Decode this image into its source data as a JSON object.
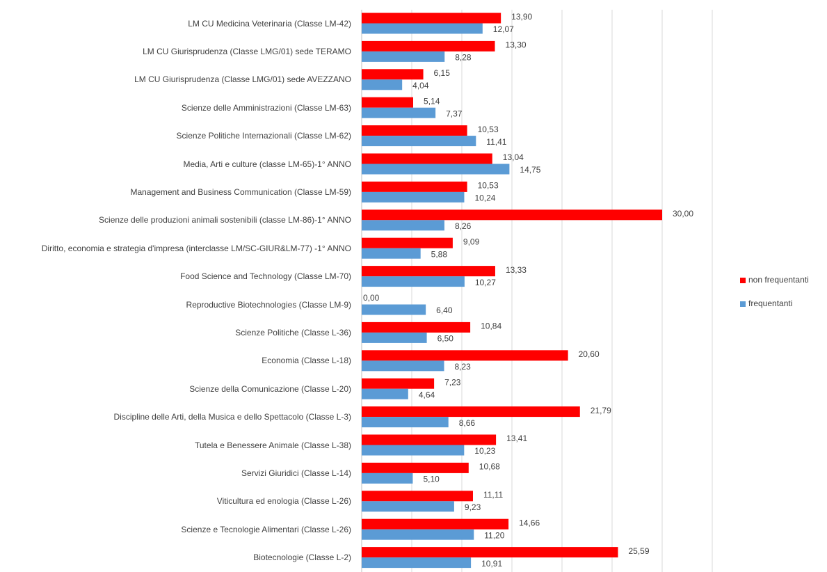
{
  "chart_data": {
    "type": "bar",
    "orientation": "horizontal",
    "categories": [
      "LM CU Medicina Veterinaria (Classe LM-42)",
      "LM CU Giurisprudenza (Classe LMG/01) sede TERAMO",
      "LM CU  Giurisprudenza (Classe LMG/01) sede AVEZZANO",
      "Scienze delle Amministrazioni (Classe LM-63)",
      "Scienze Politiche Internazionali (Classe LM-62)",
      "Media, Arti e culture (classe LM-65)-1° ANNO",
      "Management and Business Communication (Classe LM-59)",
      "Scienze delle produzioni animali sostenibili (classe LM-86)-1° ANNO",
      "Diritto, economia e strategia d'impresa (interclasse LM/SC-GIUR&LM-77) -1° ANNO",
      "Food Science and Technology (Classe LM-70)",
      "Reproductive Biotechnologies (Classe LM-9)",
      "Scienze Politiche (Classe L-36)",
      "Economia (Classe L-18)",
      "Scienze della Comunicazione (Classe L-20)",
      "Discipline delle Arti, della Musica e dello Spettacolo (Classe L-3)",
      "Tutela e Benessere Animale (Classe L-38)",
      "Servizi Giuridici (Classe L-14)",
      "Viticultura ed enologia (Classe L-26)",
      "Scienze e Tecnologie Alimentari (Classe L-26)",
      "Biotecnologie (Classe L-2)"
    ],
    "series": [
      {
        "name": "non frequentanti",
        "color": "#ff0000",
        "values": [
          13.9,
          13.3,
          6.15,
          5.14,
          10.53,
          13.04,
          10.53,
          30,
          9.09,
          13.33,
          0,
          10.84,
          20.6,
          7.23,
          21.79,
          13.41,
          10.68,
          11.11,
          14.66,
          25.59
        ],
        "value_labels": [
          "13,90",
          "13,30",
          "6,15",
          "5,14",
          "10,53",
          "13,04",
          "10,53",
          "30,00",
          "9,09",
          "13,33",
          "0,00",
          "10,84",
          "20,60",
          "7,23",
          "21,79",
          "13,41",
          "10,68",
          "11,11",
          "14,66",
          "25,59"
        ]
      },
      {
        "name": "frequentanti",
        "color": "#5b9bd5",
        "values": [
          12.07,
          8.28,
          4.04,
          7.37,
          11.41,
          14.75,
          10.24,
          8.26,
          5.88,
          10.27,
          6.4,
          6.5,
          8.23,
          4.64,
          8.66,
          10.23,
          5.1,
          9.23,
          11.2,
          10.91
        ],
        "value_labels": [
          "12,07",
          "8,28",
          "4,04",
          "7,37",
          "11,41",
          "14,75",
          "10,24",
          "8,26",
          "5,88",
          "10,27",
          "6,40",
          "6,50",
          "8,23",
          "4,64",
          "8,66",
          "10,23",
          "5,10",
          "9,23",
          "11,20",
          "10,91"
        ]
      }
    ],
    "xlim": [
      0,
      35
    ],
    "xticks": [
      0,
      5,
      10,
      15,
      20,
      25,
      30,
      35
    ],
    "grid": true,
    "legend": "right"
  }
}
